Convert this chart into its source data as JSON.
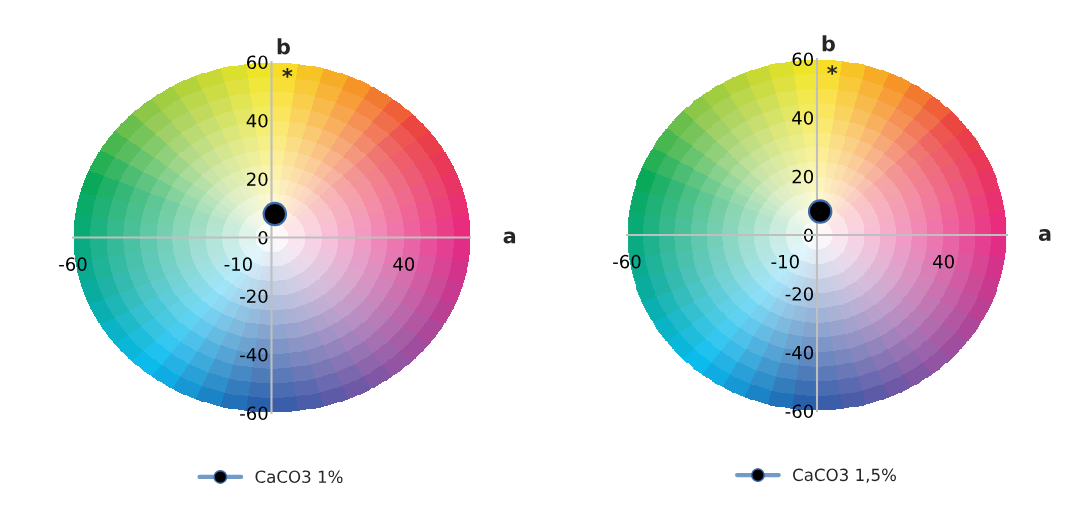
{
  "chart_data": [
    {
      "type": "scatter",
      "xlabel": "a",
      "ylabel": "b",
      "x": [
        1
      ],
      "xlim": [
        -60,
        60
      ],
      "ylim": [
        -60,
        60
      ],
      "xticks": [
        -60,
        -10,
        40
      ],
      "yticks": [
        60,
        40,
        20,
        0,
        -20,
        -40,
        -60
      ],
      "series": [
        {
          "name": "CaCO3 1%",
          "color": "#000000",
          "values": [
            8
          ]
        }
      ],
      "marker": "circle",
      "legend": "bottom",
      "grid": false,
      "annotations": [
        "*"
      ]
    },
    {
      "type": "scatter",
      "xlabel": "a",
      "ylabel": "b",
      "x": [
        1
      ],
      "xlim": [
        -60,
        60
      ],
      "ylim": [
        -60,
        60
      ],
      "xticks": [
        -60,
        -10,
        40
      ],
      "yticks": [
        60,
        40,
        20,
        0,
        -20,
        -40,
        -60
      ],
      "series": [
        {
          "name": "CaCO3 1,5%",
          "color": "#000000",
          "values": [
            8
          ]
        }
      ],
      "marker": "circle",
      "legend": "bottom",
      "grid": false,
      "annotations": [
        "*"
      ]
    }
  ]
}
